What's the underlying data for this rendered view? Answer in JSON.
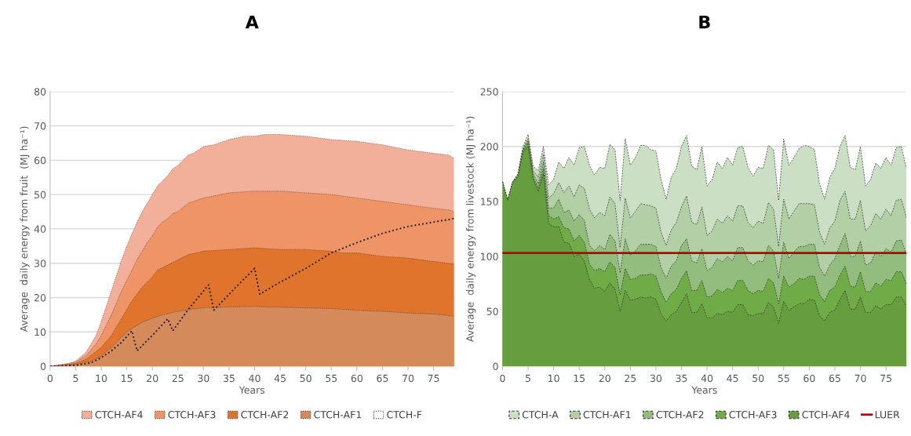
{
  "chart_data": [
    {
      "type": "area",
      "title": "A",
      "xlabel": "Years",
      "ylabel": "Average  daily energy from fruit  (MJ ha⁻¹)",
      "xlim": [
        0,
        79
      ],
      "xticks": [
        0,
        5,
        10,
        15,
        20,
        25,
        30,
        35,
        40,
        45,
        50,
        55,
        60,
        65,
        70,
        75
      ],
      "ylim": [
        0,
        80
      ],
      "yticks": [
        0,
        10,
        20,
        30,
        40,
        50,
        60,
        70,
        80
      ],
      "grid": "y",
      "legend": "bottom",
      "line_style": "dotted",
      "series": [
        {
          "name": "CTCH-AF4",
          "color": "#f2b09a",
          "x": [
            0,
            3,
            5,
            7,
            9,
            10,
            11,
            12,
            13,
            14,
            15,
            16,
            17,
            18,
            19,
            20,
            21,
            22,
            23,
            24,
            25,
            26,
            27,
            28,
            29,
            30,
            32,
            35,
            38,
            40,
            42,
            45,
            50,
            55,
            60,
            65,
            70,
            75,
            78,
            79
          ],
          "values": [
            0,
            0.3,
            1.5,
            4,
            9,
            13,
            17.5,
            22,
            26.5,
            31,
            35,
            38.5,
            42,
            45,
            47.5,
            50,
            52.5,
            54,
            55.5,
            57.5,
            58.5,
            60,
            61.5,
            62,
            63,
            64,
            64.5,
            66,
            67,
            67,
            67.5,
            67.5,
            67,
            66,
            65.5,
            64.5,
            63,
            62,
            61.5,
            60.5
          ]
        },
        {
          "name": "CTCH-AF3",
          "color": "#ef9466",
          "x": [
            0,
            5,
            7,
            9,
            10,
            11,
            12,
            13,
            14,
            15,
            16,
            17,
            18,
            19,
            20,
            21,
            22,
            23,
            24,
            25,
            27,
            30,
            35,
            40,
            45,
            50,
            55,
            60,
            65,
            70,
            75,
            78,
            79
          ],
          "values": [
            0,
            1.2,
            3,
            6.5,
            9,
            12,
            15,
            18.5,
            22,
            25,
            28,
            31,
            33.5,
            36,
            38,
            40.5,
            42,
            43,
            44.5,
            45,
            47.5,
            49,
            50.5,
            51,
            51,
            50.5,
            50,
            49,
            48,
            47,
            46,
            45.5,
            45
          ]
        },
        {
          "name": "CTCH-AF2",
          "color": "#e0742c",
          "x": [
            0,
            5,
            7,
            10,
            12,
            14,
            15,
            16,
            18,
            20,
            21,
            23,
            25,
            27,
            30,
            35,
            40,
            45,
            50,
            55,
            57,
            60,
            65,
            70,
            75,
            79
          ],
          "values": [
            0,
            0.8,
            2,
            5.5,
            9,
            14,
            16.5,
            19,
            23,
            26,
            28,
            29.5,
            31,
            32.5,
            33.5,
            34,
            34.5,
            34,
            34,
            33.5,
            33,
            33,
            32,
            31.5,
            30.5,
            29.8
          ]
        },
        {
          "name": "CTCH-AF1",
          "color": "#d48a5a",
          "x": [
            0,
            5,
            8,
            10,
            12,
            14,
            15,
            16,
            18,
            20,
            22,
            25,
            28,
            30,
            35,
            40,
            45,
            50,
            55,
            60,
            65,
            70,
            75,
            79
          ],
          "values": [
            0,
            0.5,
            1.5,
            3,
            5.5,
            8.5,
            10,
            11,
            12.8,
            14,
            15,
            16,
            16.7,
            17,
            17.3,
            17.4,
            17.2,
            17,
            16.8,
            16.3,
            16,
            15.5,
            15.2,
            14.6
          ]
        },
        {
          "name": "CTCH-F",
          "type": "line",
          "color": "#222222",
          "x": [
            0,
            5,
            8,
            10,
            12,
            14,
            16,
            17,
            20,
            23,
            24,
            27,
            31,
            32,
            36,
            40,
            41,
            45,
            50,
            55,
            60,
            65,
            70,
            75,
            79
          ],
          "values": [
            0,
            0.3,
            1,
            2.5,
            4.5,
            7,
            10.3,
            4.5,
            9,
            13.8,
            10.3,
            16.5,
            23.7,
            16.3,
            22.5,
            28.5,
            21,
            24.5,
            28.5,
            33,
            36,
            38.7,
            40.7,
            42,
            43
          ]
        }
      ]
    },
    {
      "type": "area",
      "title": "B",
      "xlabel": "Years",
      "ylabel": "Average  daily energy from livestock (MJ ha⁻¹)",
      "xlim": [
        0,
        79
      ],
      "xticks": [
        0,
        5,
        10,
        15,
        20,
        25,
        30,
        35,
        40,
        45,
        50,
        55,
        60,
        65,
        70,
        75
      ],
      "ylim": [
        0,
        250
      ],
      "yticks": [
        0,
        50,
        100,
        150,
        200,
        250
      ],
      "grid": "y",
      "legend": "bottom",
      "line_style": "dashed",
      "x": [
        0,
        1,
        2,
        3,
        4,
        5,
        6,
        7,
        8,
        9,
        10,
        11,
        12,
        13,
        14,
        15,
        16,
        17,
        18,
        19,
        20,
        21,
        22,
        23,
        24,
        25,
        26,
        27,
        28,
        29,
        30,
        31,
        32,
        33,
        34,
        35,
        36,
        37,
        38,
        39,
        40,
        41,
        42,
        43,
        44,
        45,
        46,
        47,
        48,
        49,
        50,
        51,
        52,
        53,
        54,
        55,
        56,
        57,
        58,
        59,
        60,
        61,
        62,
        63,
        64,
        65,
        66,
        67,
        68,
        69,
        70,
        71,
        72,
        73,
        74,
        75,
        76,
        77,
        78,
        79
      ],
      "series": [
        {
          "name": "CTCH-A",
          "color": "#cadfc3",
          "values": [
            168,
            151,
            168,
            175,
            200,
            211,
            182,
            178,
            200,
            165,
            170,
            186,
            180,
            190,
            183,
            199,
            200,
            183,
            174,
            181,
            180,
            202,
            197,
            151,
            207,
            183,
            190,
            201,
            201,
            197,
            196,
            170,
            152,
            172,
            180,
            200,
            210,
            182,
            179,
            200,
            164,
            170,
            186,
            180,
            190,
            183,
            199,
            200,
            181,
            173,
            181,
            180,
            201,
            197,
            151,
            207,
            183,
            190,
            198,
            201,
            200,
            197,
            166,
            152,
            172,
            180,
            200,
            210,
            181,
            179,
            200,
            164,
            170,
            185,
            180,
            190,
            183,
            199,
            200,
            180
          ]
        },
        {
          "name": "CTCH-AF1",
          "color": "#b3cfa5",
          "values": [
            168,
            151,
            168,
            174,
            198,
            207,
            178,
            172,
            193,
            153,
            157,
            167,
            158,
            164,
            154,
            165,
            162,
            143,
            135,
            140,
            137,
            154,
            148,
            108,
            153,
            135,
            141,
            148,
            147,
            146,
            144,
            122,
            110,
            124,
            131,
            145,
            155,
            131,
            129,
            145,
            119,
            123,
            134,
            130,
            137,
            132,
            146,
            146,
            131,
            126,
            132,
            130,
            149,
            143,
            109,
            152,
            134,
            141,
            148,
            148,
            148,
            147,
            122,
            111,
            126,
            132,
            151,
            159,
            134,
            134,
            151,
            123,
            128,
            139,
            134,
            143,
            137,
            151,
            152,
            135
          ]
        },
        {
          "name": "CTCH-AF2",
          "color": "#93bd7e",
          "values": [
            168,
            151,
            168,
            173,
            197,
            205,
            175,
            166,
            186,
            144,
            144,
            152,
            140,
            142,
            132,
            138,
            133,
            110,
            105,
            110,
            106,
            120,
            114,
            85,
            116,
            101,
            105,
            111,
            111,
            111,
            109,
            90,
            80,
            91,
            96,
            110,
            116,
            96,
            94,
            107,
            87,
            90,
            98,
            95,
            100,
            96,
            108,
            108,
            96,
            92,
            96,
            95,
            110,
            105,
            80,
            113,
            98,
            104,
            109,
            109,
            111,
            111,
            90,
            82,
            92,
            98,
            110,
            121,
            100,
            100,
            114,
            92,
            94,
            104,
            100,
            107,
            104,
            114,
            115,
            102
          ]
        },
        {
          "name": "CTCH-AF3",
          "color": "#6fac47",
          "values": [
            168,
            151,
            168,
            172,
            196,
            203,
            172,
            162,
            180,
            137,
            134,
            136,
            126,
            125,
            114,
            119,
            113,
            93,
            87,
            89,
            86,
            95,
            90,
            65,
            89,
            79,
            80,
            83,
            83,
            84,
            82,
            68,
            58,
            66,
            70,
            80,
            87,
            69,
            69,
            78,
            63,
            64,
            70,
            67,
            71,
            69,
            78,
            78,
            69,
            66,
            69,
            68,
            80,
            76,
            57,
            82,
            72,
            75,
            80,
            79,
            82,
            82,
            65,
            59,
            69,
            72,
            83,
            91,
            73,
            72,
            86,
            68,
            68,
            76,
            73,
            79,
            78,
            86,
            86,
            75
          ]
        },
        {
          "name": "CTCH-AF4",
          "color": "#669d3f",
          "values": [
            168,
            151,
            168,
            172,
            195,
            200,
            170,
            159,
            175,
            130,
            127,
            127,
            113,
            112,
            100,
            102,
            96,
            79,
            71,
            72,
            68,
            76,
            70,
            50,
            69,
            60,
            61,
            63,
            62,
            63,
            61,
            48,
            41,
            47,
            50,
            58,
            66,
            49,
            49,
            57,
            44,
            44,
            48,
            47,
            50,
            49,
            56,
            56,
            47,
            46,
            48,
            48,
            58,
            54,
            39,
            59,
            51,
            54,
            57,
            57,
            61,
            60,
            46,
            41,
            49,
            51,
            61,
            69,
            52,
            52,
            63,
            49,
            49,
            55,
            52,
            56,
            56,
            63,
            63,
            55
          ]
        }
      ],
      "ref_lines": [
        {
          "axis": "y",
          "value": 103,
          "label": "LUER",
          "color": "#c00000"
        }
      ]
    }
  ]
}
